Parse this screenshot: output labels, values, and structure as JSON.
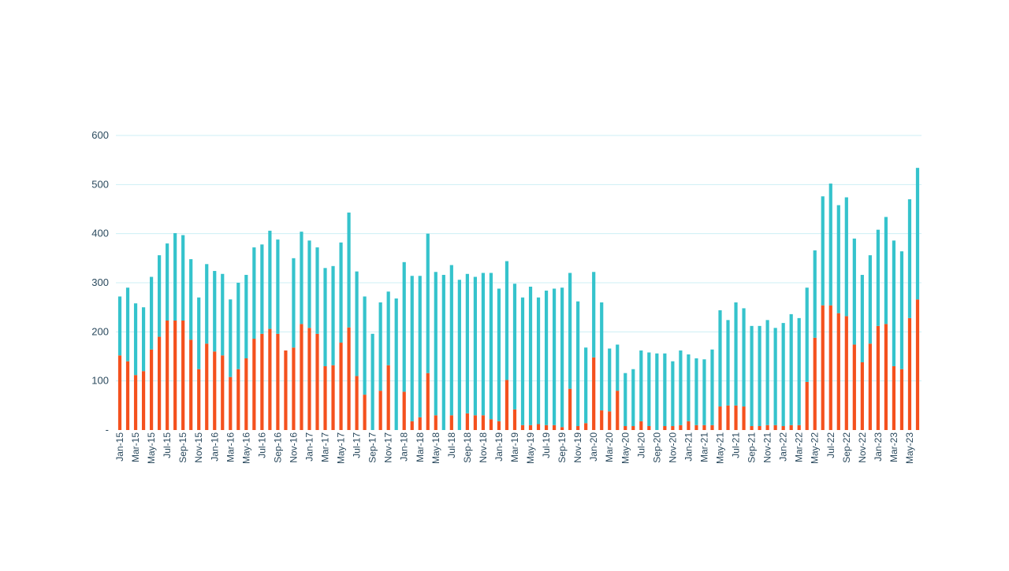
{
  "chart_data": {
    "type": "bar",
    "stacked": true,
    "title": "",
    "xlabel": "",
    "ylabel": "",
    "ylim": [
      0,
      600
    ],
    "y_ticks": [
      0,
      100,
      200,
      300,
      400,
      500,
      600
    ],
    "y_tick_labels": [
      "-",
      "100",
      "200",
      "300",
      "400",
      "500",
      "600"
    ],
    "grid": true,
    "legend": "none",
    "colors": {
      "bottom": "#f4511e",
      "top": "#35c3cc",
      "grid": "#cdeff5",
      "tick_text": "#2b4a5e"
    },
    "categories": [
      "Jan-15",
      "Feb-15",
      "Mar-15",
      "Apr-15",
      "May-15",
      "Jun-15",
      "Jul-15",
      "Aug-15",
      "Sep-15",
      "Oct-15",
      "Nov-15",
      "Dec-15",
      "Jan-16",
      "Feb-16",
      "Mar-16",
      "Apr-16",
      "May-16",
      "Jun-16",
      "Jul-16",
      "Aug-16",
      "Sep-16",
      "Oct-16",
      "Nov-16",
      "Dec-16",
      "Jan-17",
      "Feb-17",
      "Mar-17",
      "Apr-17",
      "May-17",
      "Jun-17",
      "Jul-17",
      "Aug-17",
      "Sep-17",
      "Oct-17",
      "Nov-17",
      "Dec-17",
      "Jan-18",
      "Feb-18",
      "Mar-18",
      "Apr-18",
      "May-18",
      "Jun-18",
      "Jul-18",
      "Aug-18",
      "Sep-18",
      "Oct-18",
      "Nov-18",
      "Dec-18",
      "Jan-19",
      "Feb-19",
      "Mar-19",
      "Apr-19",
      "May-19",
      "Jun-19",
      "Jul-19",
      "Aug-19",
      "Sep-19",
      "Oct-19",
      "Nov-19",
      "Dec-19",
      "Jan-20",
      "Feb-20",
      "Mar-20",
      "Apr-20",
      "May-20",
      "Jun-20",
      "Jul-20",
      "Aug-20",
      "Sep-20",
      "Oct-20",
      "Nov-20",
      "Dec-20",
      "Jan-21",
      "Feb-21",
      "Mar-21",
      "Apr-21",
      "May-21",
      "Jun-21",
      "Jul-21",
      "Aug-21",
      "Sep-21",
      "Oct-21",
      "Nov-21",
      "Dec-21",
      "Jan-22",
      "Feb-22",
      "Mar-22",
      "Apr-22",
      "May-22",
      "Jun-22",
      "Jul-22",
      "Aug-22",
      "Sep-22",
      "Oct-22",
      "Nov-22",
      "Dec-22",
      "Jan-23",
      "Feb-23",
      "Mar-23",
      "Apr-23",
      "May-23",
      "Jun-23"
    ],
    "shown_tick_labels": [
      "Jan-15",
      "Mar-15",
      "May-15",
      "Jul-15",
      "Sep-15",
      "Nov-15",
      "Jan-16",
      "Mar-16",
      "May-16",
      "Jul-16",
      "Sep-16",
      "Nov-16",
      "Jan-17",
      "Mar-17",
      "May-17",
      "Jul-17",
      "Sep-17",
      "Nov-17",
      "Jan-18",
      "Mar-18",
      "May-18",
      "Jul-18",
      "Sep-18",
      "Nov-18",
      "Jan-19",
      "Mar-19",
      "May-19",
      "Jul-19",
      "Sep-19",
      "Nov-19",
      "Jan-20",
      "Mar-20",
      "May-20",
      "Jul-20",
      "Sep-20",
      "Nov-20",
      "Jan-21",
      "Mar-21",
      "May-21",
      "Jul-21",
      "Sep-21",
      "Nov-21",
      "Jan-22",
      "Mar-22",
      "May-22",
      "Jul-22",
      "Sep-22",
      "Nov-22",
      "Jan-23",
      "Mar-23",
      "May-23"
    ],
    "series": [
      {
        "values": [
          152,
          140,
          112,
          120,
          164,
          190,
          223,
          223,
          223,
          184,
          124,
          176,
          160,
          152,
          108,
          124,
          146,
          186,
          196,
          206,
          196,
          162,
          168,
          216,
          208,
          196,
          130,
          132,
          178,
          209,
          110,
          72,
          0,
          80,
          132,
          0,
          78,
          18,
          26,
          116,
          30,
          0,
          30,
          0,
          34,
          30,
          30,
          22,
          18,
          102,
          42,
          10,
          10,
          12,
          10,
          10,
          6,
          84,
          8,
          14,
          148,
          40,
          38,
          80,
          8,
          8,
          18,
          8,
          0,
          8,
          8,
          10,
          18,
          10,
          10,
          10,
          48,
          50,
          50,
          48,
          8,
          8,
          10,
          10,
          8,
          10,
          10,
          98,
          188,
          254,
          254,
          238,
          232,
          174,
          138,
          176,
          212,
          216,
          130,
          124,
          228,
          266
        ]
      },
      {
        "values": [
          120,
          150,
          146,
          130,
          148,
          166,
          157,
          178,
          174,
          164,
          146,
          162,
          164,
          166,
          158,
          176,
          170,
          186,
          182,
          200,
          192,
          0,
          182,
          188,
          178,
          176,
          200,
          202,
          204,
          234,
          213,
          200,
          196,
          180,
          150,
          268,
          264,
          296,
          288,
          284,
          292,
          316,
          306,
          306,
          284,
          282,
          290,
          298,
          270,
          242,
          256,
          260,
          282,
          258,
          274,
          278,
          284,
          236,
          254,
          154,
          174,
          220,
          128,
          94,
          108,
          116,
          144,
          150,
          156,
          148,
          132,
          152,
          136,
          136,
          134,
          154,
          196,
          174,
          210,
          200,
          204,
          204,
          214,
          198,
          210,
          226,
          218,
          192,
          178,
          222,
          248,
          220,
          242,
          216,
          178,
          180,
          196,
          218,
          256,
          240,
          242,
          268
        ]
      }
    ]
  }
}
